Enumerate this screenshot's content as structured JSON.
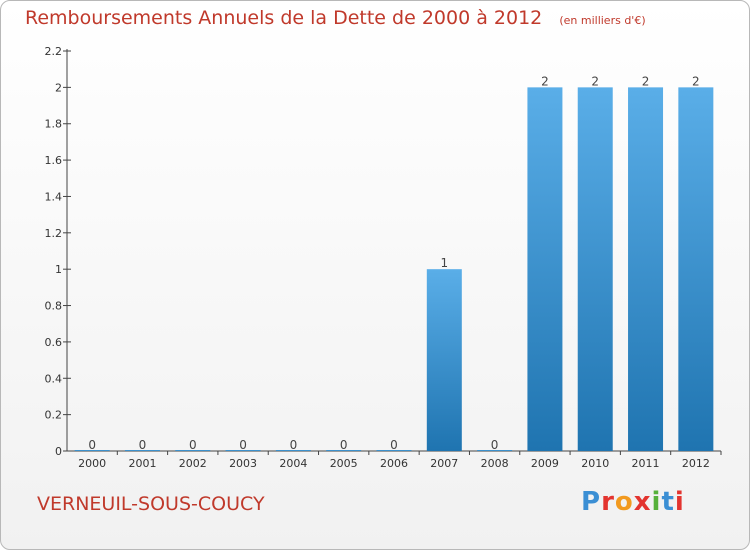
{
  "header": {
    "title": "Remboursements Annuels de la Dette de 2000 à 2012",
    "unit": "(en milliers d'€)"
  },
  "footer": {
    "commune": "VERNEUIL-SOUS-COUCY",
    "brand": "Proxiti",
    "brand_colors": [
      "#3b8fd4",
      "#e3342f",
      "#f29a1f",
      "#e3342f",
      "#56b13a",
      "#3b8fd4",
      "#e3342f"
    ]
  },
  "colors": {
    "bar_light": "#5aaee8",
    "bar_dark": "#1f74b0",
    "axis": "#444444",
    "title": "#c0392b"
  },
  "chart_data": {
    "type": "bar",
    "title": "Remboursements Annuels de la Dette de 2000 à 2012",
    "xlabel": "",
    "ylabel": "",
    "categories": [
      "2000",
      "2001",
      "2002",
      "2003",
      "2004",
      "2005",
      "2006",
      "2007",
      "2008",
      "2009",
      "2010",
      "2011",
      "2012"
    ],
    "values": [
      0,
      0,
      0,
      0,
      0,
      0,
      0,
      1,
      0,
      2,
      2,
      2,
      2
    ],
    "data_labels": [
      "0",
      "0",
      "0",
      "0",
      "0",
      "0",
      "0",
      "1",
      "0",
      "2",
      "2",
      "2",
      "2"
    ],
    "y_ticks": [
      0,
      0.2,
      0.4,
      0.6,
      0.8,
      1,
      1.2,
      1.4,
      1.6,
      1.8,
      2,
      2.2
    ],
    "y_tick_labels": [
      "0",
      "0.2",
      "0.4",
      "0.6",
      "0.8",
      "1",
      "1.2",
      "1.4",
      "1.6",
      "1.8",
      "2",
      "2.2"
    ],
    "ylim": [
      0,
      2.2
    ],
    "grid": false,
    "legend": "none"
  }
}
